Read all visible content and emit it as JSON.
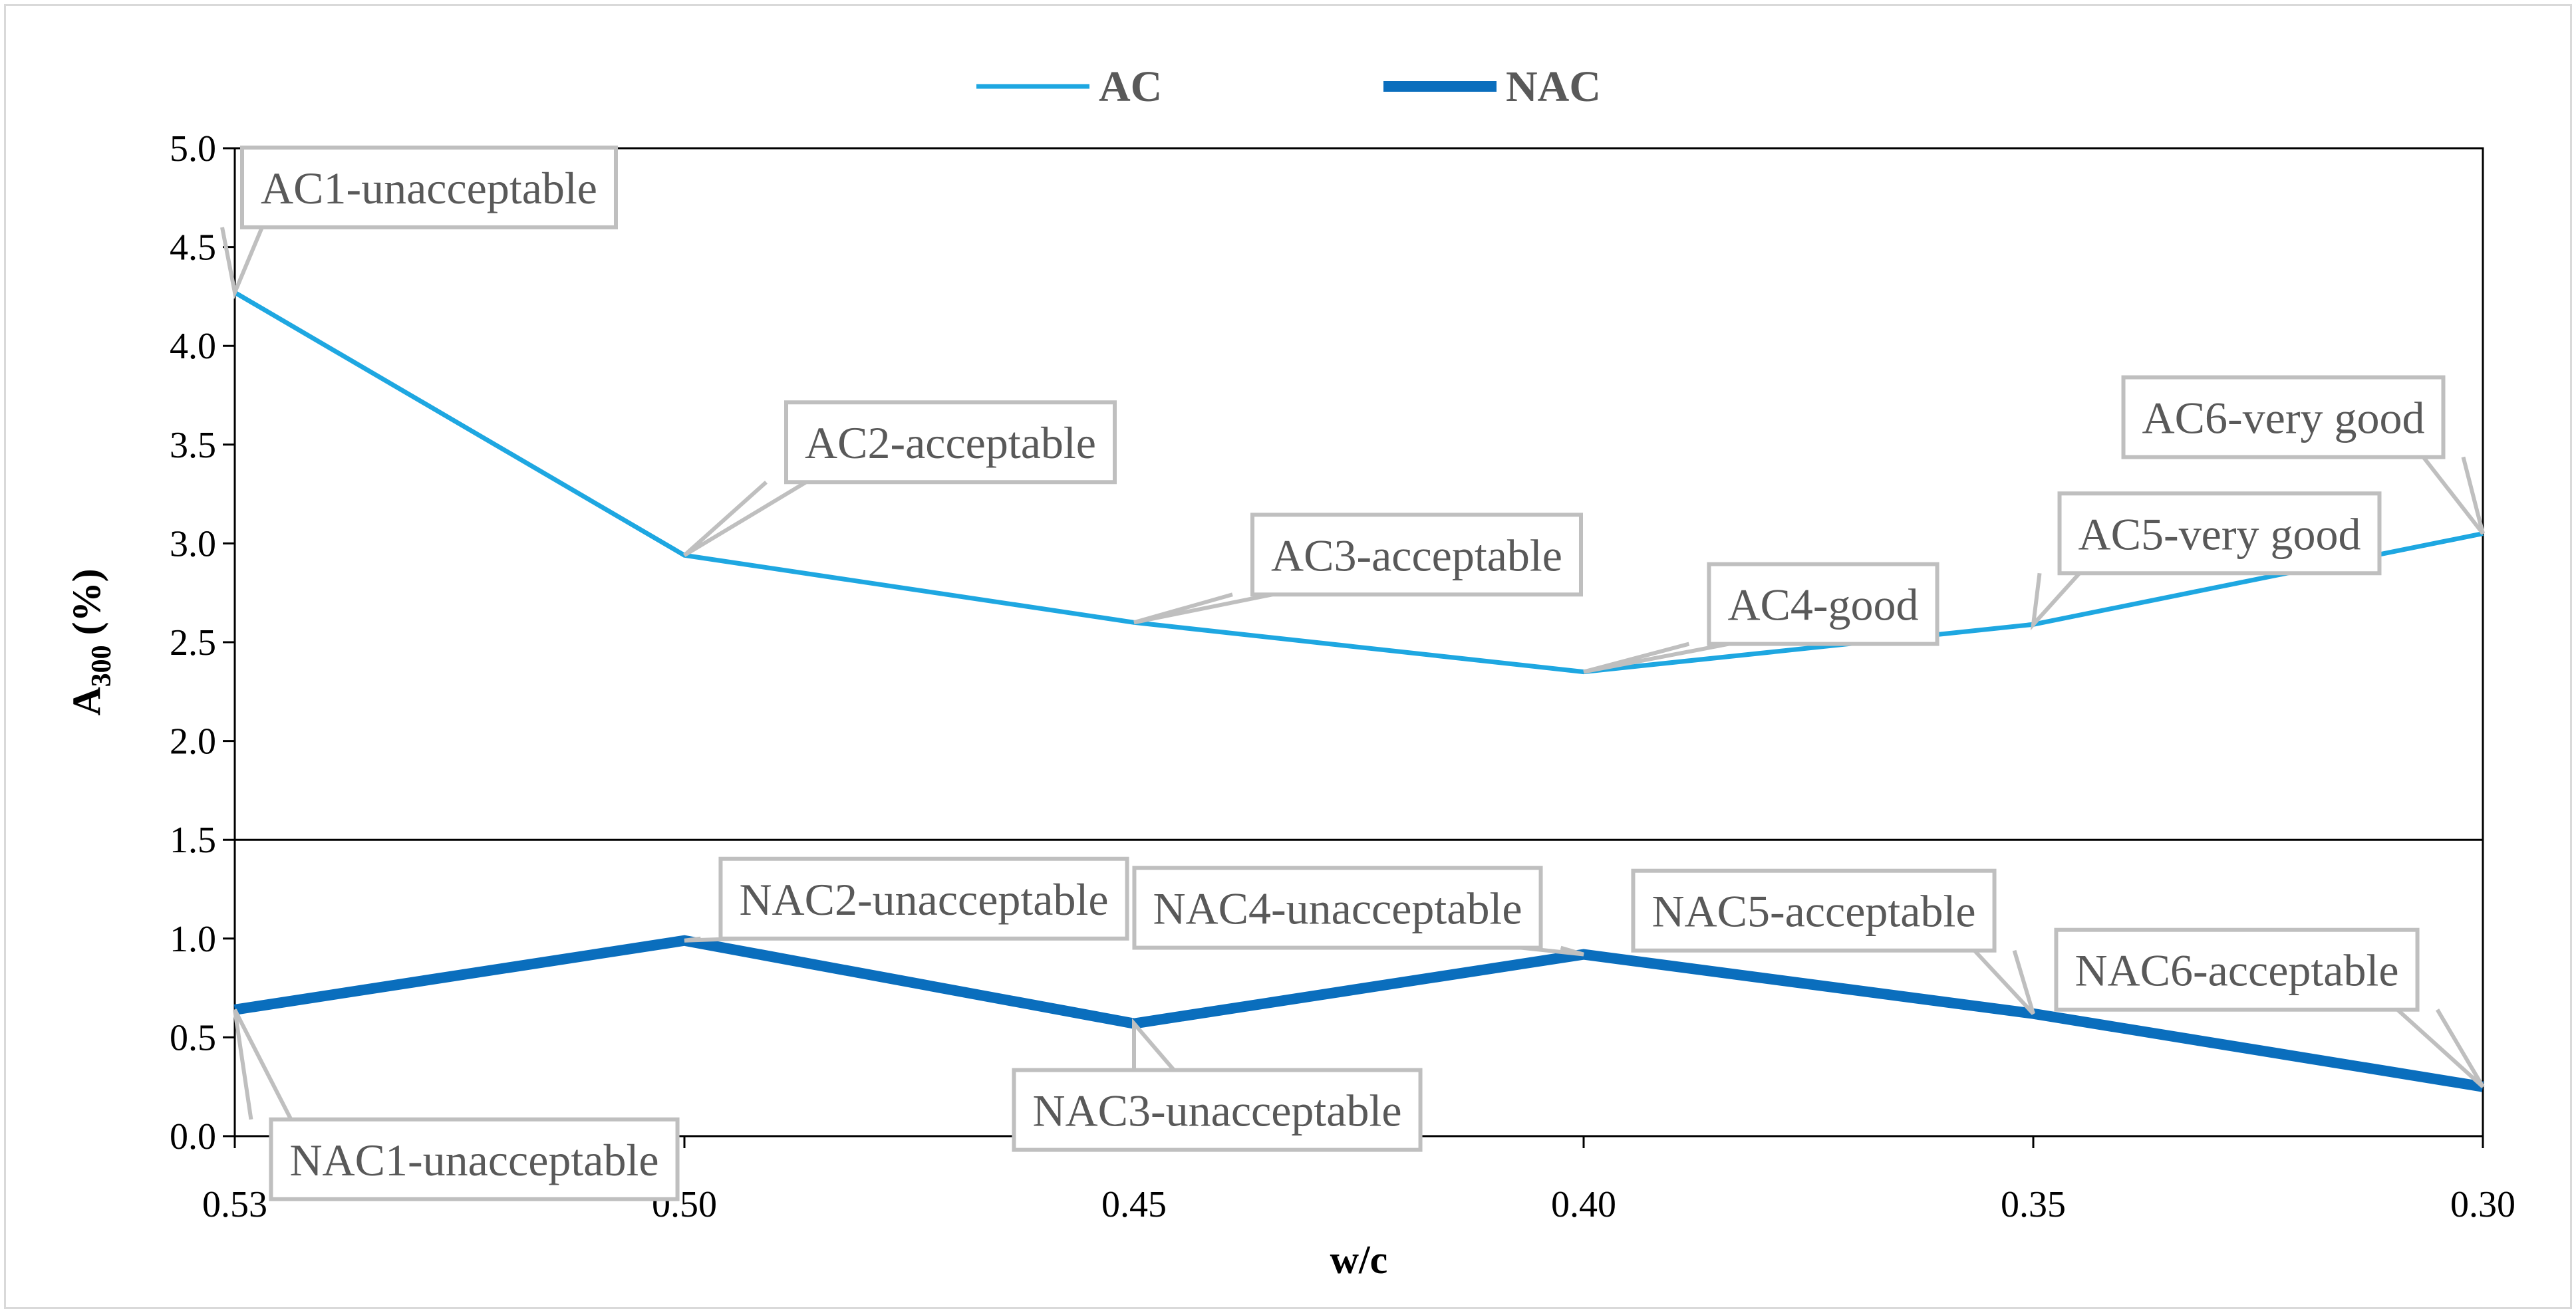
{
  "chart_data": {
    "type": "line",
    "xlabel": "w/c",
    "ylabel": {
      "main": "A",
      "sub": "300",
      "suffix": " (%)"
    },
    "categories": [
      "0.53",
      "0.50",
      "0.45",
      "0.40",
      "0.35",
      "0.30"
    ],
    "ylim": [
      0,
      5
    ],
    "yticks": [
      "0.0",
      "0.5",
      "1.0",
      "1.5",
      "2.0",
      "2.5",
      "3.0",
      "3.5",
      "4.0",
      "4.5",
      "5.0"
    ],
    "grid": false,
    "legend_position": "top-center",
    "series": [
      {
        "name": "AC",
        "color": "#1ea7e1",
        "values": [
          4.27,
          2.94,
          2.6,
          2.35,
          2.59,
          3.05
        ],
        "labels": [
          "AC1-unacceptable",
          "AC2-acceptable",
          "AC3-acceptable",
          "AC4-good",
          "AC5-very good",
          "AC6-very good"
        ]
      },
      {
        "name": "NAC",
        "color": "#0a6ebd",
        "values": [
          0.64,
          0.99,
          0.57,
          0.92,
          0.62,
          0.25
        ],
        "labels": [
          "NAC1-unacceptable",
          "NAC2-unacceptable",
          "NAC3-unacceptable",
          "NAC4-unacceptable",
          "NAC5-acceptable",
          "NAC6-acceptable"
        ]
      }
    ],
    "reference_line": {
      "value": 1.5,
      "color": "#000000"
    }
  }
}
